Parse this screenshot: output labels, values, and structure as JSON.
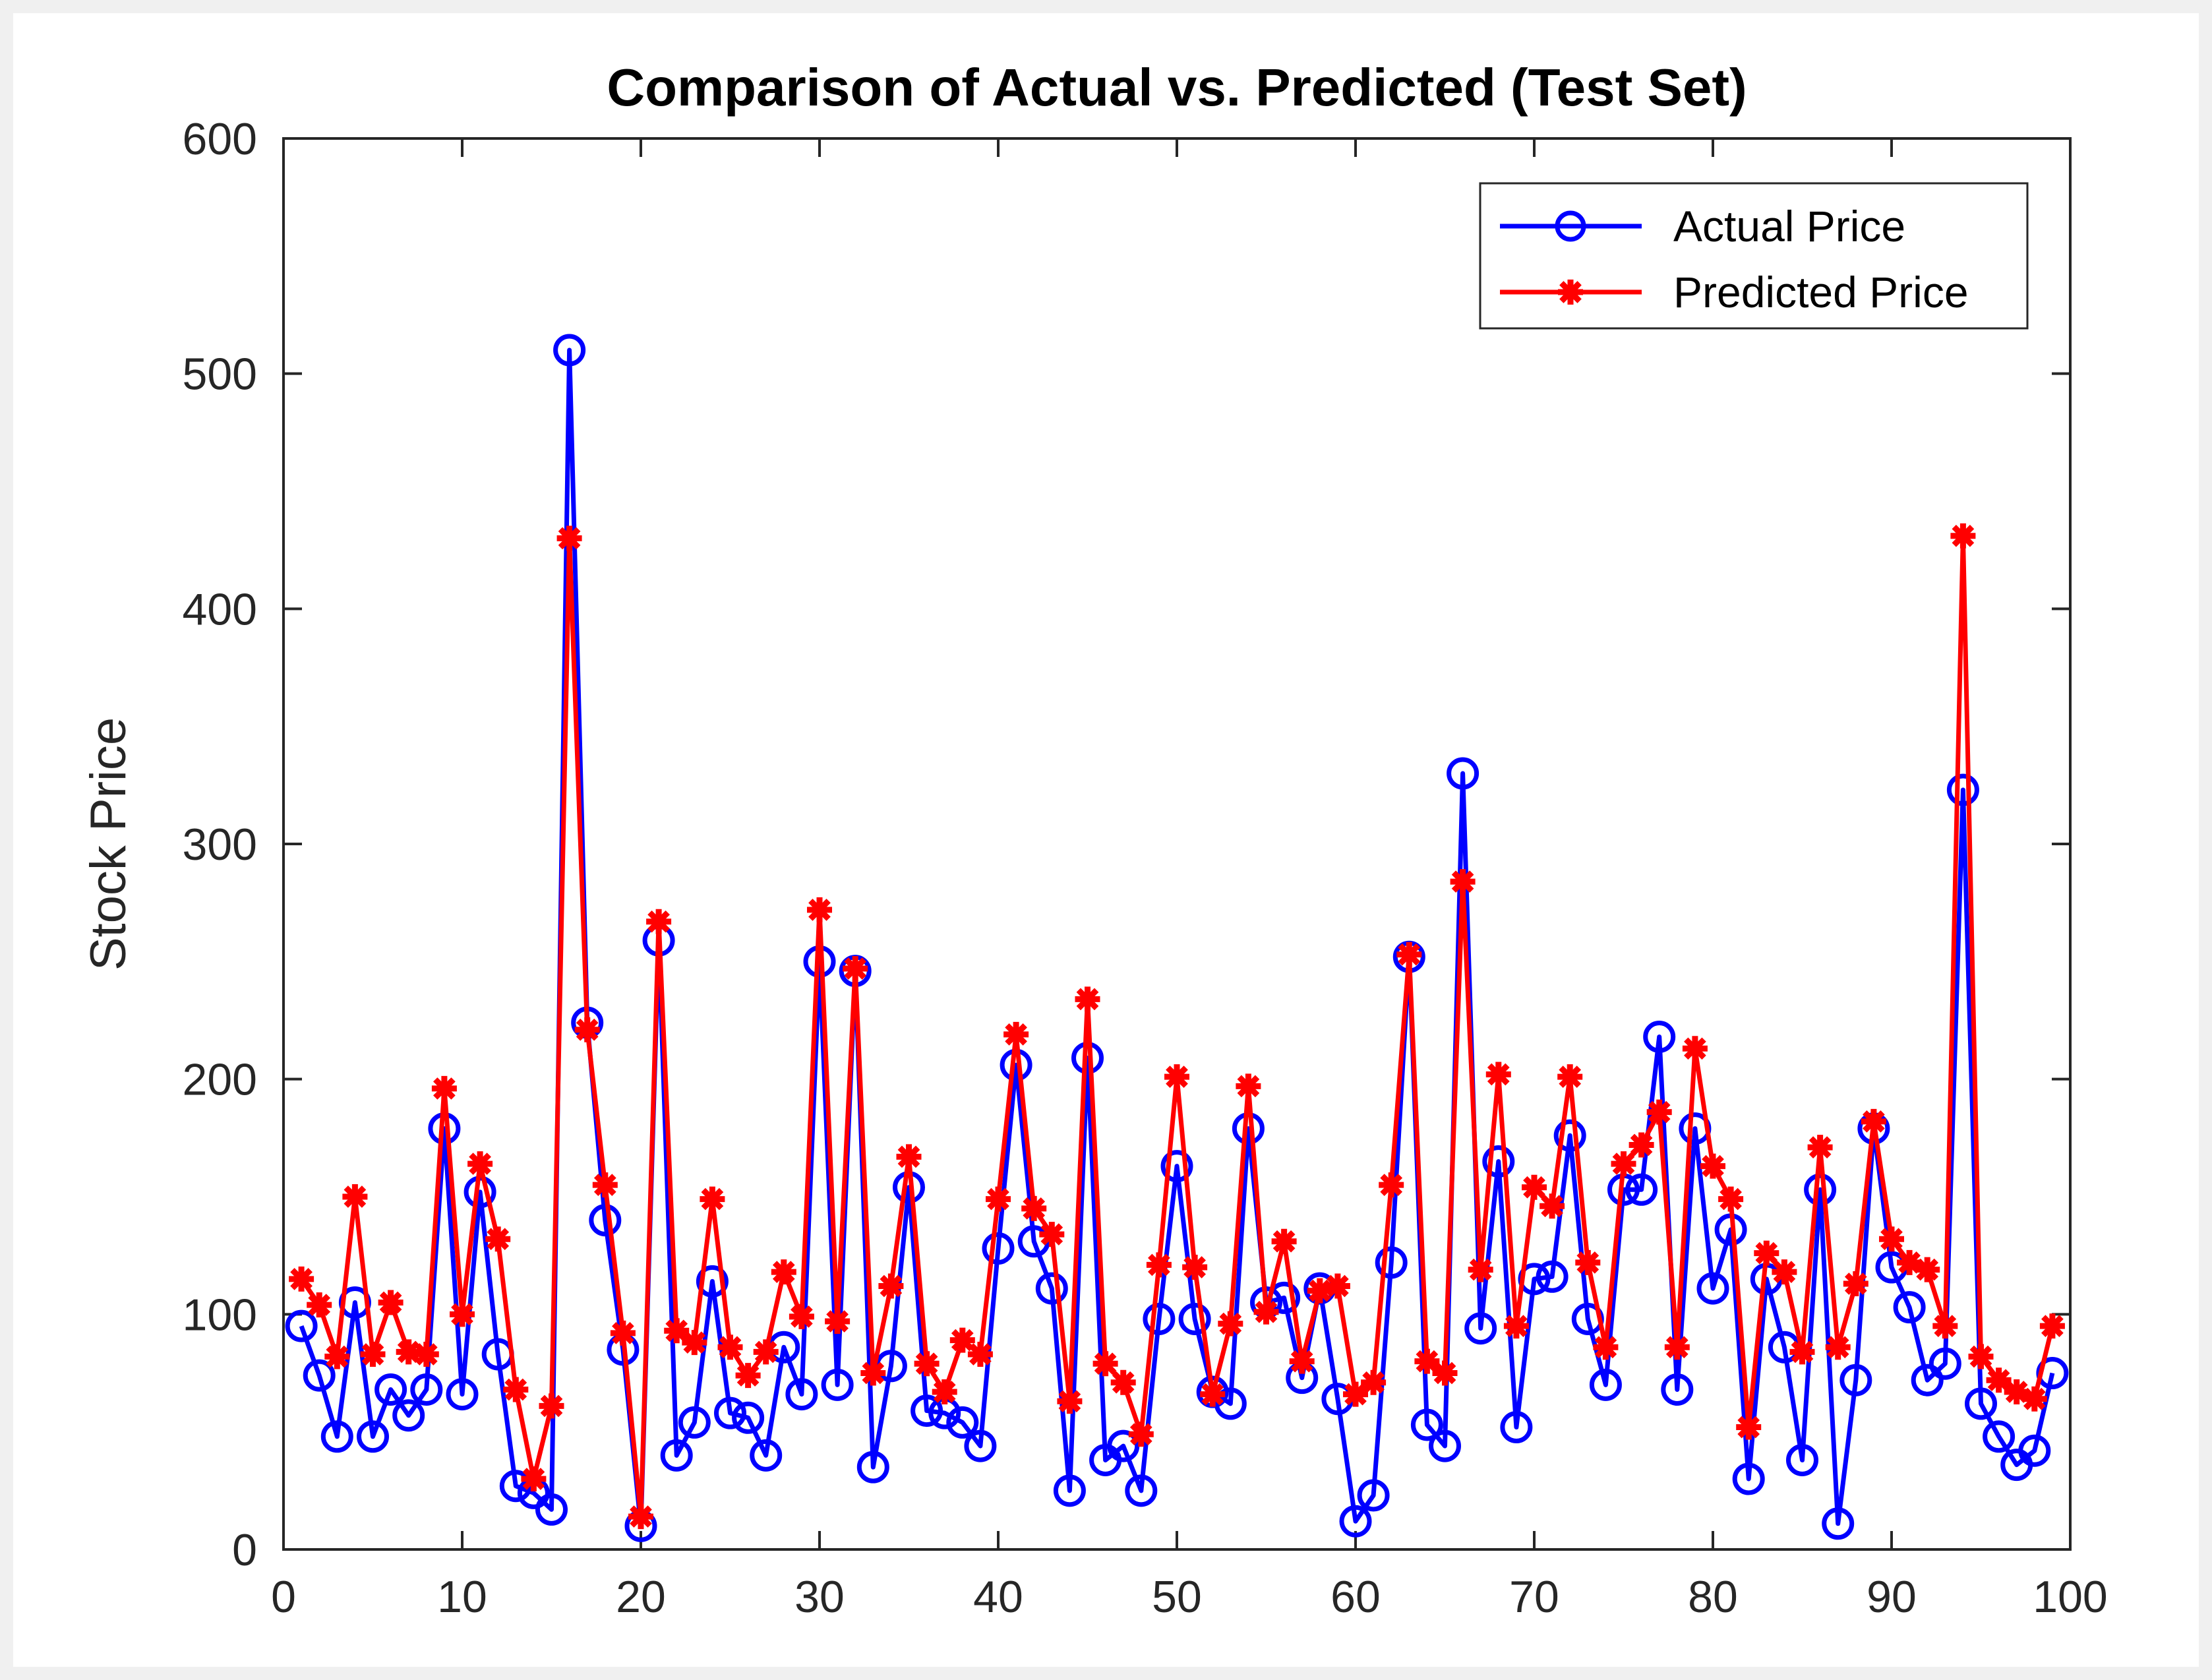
{
  "chart_data": {
    "type": "line",
    "title": "Comparison of Actual vs. Predicted (Test Set)",
    "xlabel": "",
    "ylabel": "Stock Price",
    "xlim": [
      0,
      100
    ],
    "ylim": [
      0,
      600
    ],
    "x_ticks": [
      0,
      10,
      20,
      30,
      40,
      50,
      60,
      70,
      80,
      90,
      100
    ],
    "y_ticks": [
      0,
      100,
      200,
      300,
      400,
      500,
      600
    ],
    "grid": false,
    "legend_position": "top-right",
    "x": [
      1,
      2,
      3,
      4,
      5,
      6,
      7,
      8,
      9,
      10,
      11,
      12,
      13,
      14,
      15,
      16,
      17,
      18,
      19,
      20,
      21,
      22,
      23,
      24,
      25,
      26,
      27,
      28,
      29,
      30,
      31,
      32,
      33,
      34,
      35,
      36,
      37,
      38,
      39,
      40,
      41,
      42,
      43,
      44,
      45,
      46,
      47,
      48,
      49,
      50,
      51,
      52,
      53,
      54,
      55,
      56,
      57,
      58,
      59,
      60,
      61,
      62,
      63,
      64,
      65,
      66,
      67,
      68,
      69,
      70,
      71,
      72,
      73,
      74,
      75,
      76,
      77,
      78,
      79,
      80,
      81,
      82,
      83,
      84,
      85,
      86,
      87,
      88,
      89,
      90,
      91,
      92,
      93,
      94,
      95,
      96,
      97,
      98,
      99
    ],
    "series": [
      {
        "name": "Actual Price",
        "color": "#0000ff",
        "marker": "circle",
        "values": [
          95,
          74,
          48,
          105,
          48,
          68,
          57,
          68,
          179,
          66,
          152,
          83,
          27,
          24,
          17,
          510,
          224,
          140,
          85,
          10,
          259,
          40,
          54,
          114,
          58,
          56,
          40,
          86,
          66,
          250,
          70,
          246,
          35,
          78,
          154,
          59,
          58,
          54,
          44,
          128,
          206,
          131,
          111,
          25,
          209,
          38,
          44,
          25,
          98,
          163,
          98,
          67,
          62,
          179,
          105,
          107,
          73,
          111,
          64,
          12,
          23,
          122,
          252,
          53,
          44,
          330,
          94,
          165,
          52,
          115,
          116,
          176,
          98,
          70,
          153,
          153,
          218,
          68,
          179,
          111,
          136,
          30,
          115,
          86,
          38,
          153,
          11,
          72,
          179,
          120,
          103,
          72,
          79,
          323,
          62,
          48,
          36,
          42,
          75
        ]
      },
      {
        "name": "Predicted Price",
        "color": "#ff0000",
        "marker": "asterisk",
        "values": [
          115,
          104,
          82,
          150,
          83,
          105,
          84,
          83,
          196,
          100,
          164,
          132,
          68,
          30,
          61,
          430,
          221,
          155,
          92,
          14,
          267,
          93,
          88,
          149,
          86,
          74,
          84,
          118,
          99,
          272,
          97,
          247,
          75,
          112,
          167,
          79,
          67,
          89,
          83,
          149,
          219,
          145,
          134,
          63,
          234,
          79,
          71,
          49,
          121,
          201,
          120,
          66,
          96,
          197,
          101,
          131,
          80,
          110,
          112,
          66,
          71,
          155,
          253,
          80,
          75,
          284,
          119,
          202,
          95,
          154,
          146,
          201,
          122,
          86,
          164,
          172,
          186,
          86,
          213,
          163,
          149,
          52,
          126,
          118,
          84,
          171,
          86,
          113,
          182,
          132,
          122,
          119,
          95,
          431,
          82,
          72,
          67,
          64,
          95
        ]
      }
    ]
  }
}
